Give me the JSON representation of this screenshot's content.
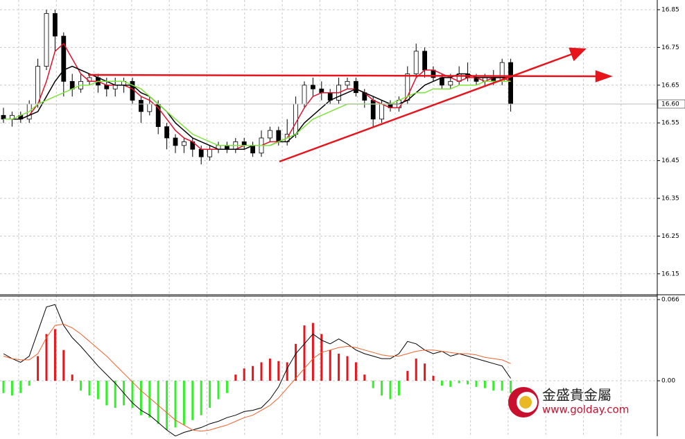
{
  "chart_data": [
    {
      "type": "candlestick",
      "ylim": [
        16.0945,
        16.8757
      ],
      "yticks": [
        16.85,
        16.75,
        16.65,
        16.55,
        16.45,
        16.35,
        16.25,
        16.15
      ],
      "current_price": {
        "value": 16.6,
        "label": "16.60"
      },
      "grid": true,
      "up_color": "#ffffff",
      "down_color": "#000000",
      "open": [
        16.57,
        16.56,
        16.57,
        16.56,
        16.6,
        16.7,
        16.84,
        16.78,
        16.66,
        16.64,
        16.66,
        16.67,
        16.65,
        16.64,
        16.65,
        16.66,
        16.61,
        16.58,
        16.6,
        16.54,
        16.51,
        16.49,
        16.5,
        16.48,
        16.46,
        16.48,
        16.49,
        16.48,
        16.5,
        16.49,
        16.47,
        16.51,
        16.53,
        16.5,
        16.52,
        16.6,
        16.65,
        16.64,
        16.63,
        16.61,
        16.65,
        16.66,
        16.63,
        16.61,
        16.56,
        16.6,
        16.59,
        16.61,
        16.68,
        16.74,
        16.69,
        16.67,
        16.65,
        16.66,
        16.68,
        16.67,
        16.66,
        16.67,
        16.66,
        16.71
      ],
      "high": [
        16.59,
        16.58,
        16.58,
        16.61,
        16.72,
        16.85,
        16.85,
        16.79,
        16.68,
        16.68,
        16.68,
        16.68,
        16.67,
        16.67,
        16.67,
        16.67,
        16.62,
        16.62,
        16.61,
        16.55,
        16.52,
        16.51,
        16.51,
        16.49,
        16.49,
        16.5,
        16.5,
        16.51,
        16.51,
        16.5,
        16.53,
        16.54,
        16.54,
        16.56,
        16.62,
        16.66,
        16.67,
        16.66,
        16.64,
        16.67,
        16.67,
        16.67,
        16.64,
        16.62,
        16.61,
        16.61,
        16.62,
        16.7,
        16.76,
        16.75,
        16.7,
        16.68,
        16.68,
        16.7,
        16.71,
        16.68,
        16.68,
        16.69,
        16.72,
        16.72
      ],
      "low": [
        16.55,
        16.54,
        16.55,
        16.55,
        16.59,
        16.69,
        16.74,
        16.62,
        16.62,
        16.63,
        16.65,
        16.63,
        16.62,
        16.62,
        16.63,
        16.6,
        16.55,
        16.57,
        16.52,
        16.48,
        16.47,
        16.47,
        16.46,
        16.44,
        16.45,
        16.47,
        16.47,
        16.47,
        16.48,
        16.46,
        16.46,
        16.5,
        16.49,
        16.49,
        16.51,
        16.59,
        16.62,
        16.61,
        16.6,
        16.6,
        16.64,
        16.62,
        16.59,
        16.54,
        16.55,
        16.58,
        16.58,
        16.6,
        16.67,
        16.67,
        16.66,
        16.64,
        16.64,
        16.65,
        16.66,
        16.65,
        16.65,
        16.65,
        16.65,
        16.58
      ],
      "close": [
        16.56,
        16.57,
        16.56,
        16.6,
        16.7,
        16.84,
        16.78,
        16.66,
        16.64,
        16.66,
        16.67,
        16.65,
        16.64,
        16.65,
        16.66,
        16.61,
        16.58,
        16.6,
        16.54,
        16.51,
        16.49,
        16.5,
        16.48,
        16.46,
        16.48,
        16.49,
        16.48,
        16.5,
        16.49,
        16.47,
        16.51,
        16.53,
        16.5,
        16.52,
        16.6,
        16.65,
        16.64,
        16.63,
        16.61,
        16.65,
        16.66,
        16.63,
        16.61,
        16.56,
        16.6,
        16.59,
        16.61,
        16.68,
        16.74,
        16.69,
        16.67,
        16.65,
        16.66,
        16.68,
        16.67,
        16.66,
        16.67,
        16.66,
        16.71,
        16.6
      ],
      "series": [
        {
          "color": "#e0102a",
          "values": [
            16.56,
            16.56,
            16.56,
            16.57,
            16.6,
            16.66,
            16.74,
            16.76,
            16.72,
            16.68,
            16.66,
            16.66,
            16.65,
            16.65,
            16.65,
            16.64,
            16.62,
            16.61,
            16.59,
            16.56,
            16.53,
            16.51,
            16.5,
            16.48,
            16.48,
            16.48,
            16.48,
            16.48,
            16.49,
            16.49,
            16.49,
            16.5,
            16.5,
            16.51,
            16.55,
            16.59,
            16.62,
            16.63,
            16.63,
            16.63,
            16.64,
            16.64,
            16.63,
            16.61,
            16.6,
            16.59,
            16.59,
            16.62,
            16.67,
            16.69,
            16.69,
            16.68,
            16.67,
            16.66,
            16.67,
            16.67,
            16.66,
            16.67,
            16.67,
            16.66
          ]
        },
        {
          "color": "#000000",
          "values": [
            16.56,
            16.56,
            16.56,
            16.57,
            16.58,
            16.62,
            16.66,
            16.69,
            16.7,
            16.69,
            16.68,
            16.67,
            16.66,
            16.65,
            16.65,
            16.65,
            16.63,
            16.62,
            16.6,
            16.58,
            16.55,
            16.53,
            16.51,
            16.5,
            16.49,
            16.48,
            16.48,
            16.48,
            16.48,
            16.49,
            16.49,
            16.49,
            16.5,
            16.5,
            16.52,
            16.55,
            16.57,
            16.59,
            16.61,
            16.62,
            16.63,
            16.64,
            16.63,
            16.62,
            16.61,
            16.6,
            16.6,
            16.61,
            16.63,
            16.65,
            16.66,
            16.67,
            16.67,
            16.68,
            16.68,
            16.67,
            16.67,
            16.67,
            16.67,
            16.67
          ]
        },
        {
          "color": "#7ee33a",
          "values": [
            16.56,
            16.56,
            16.57,
            16.58,
            16.6,
            16.61,
            16.62,
            16.63,
            16.64,
            16.65,
            16.65,
            16.66,
            16.66,
            16.66,
            16.66,
            16.65,
            16.64,
            16.62,
            16.6,
            16.58,
            16.56,
            16.54,
            16.52,
            16.51,
            16.5,
            16.49,
            16.49,
            16.49,
            16.49,
            16.49,
            16.49,
            16.49,
            16.5,
            16.51,
            16.52,
            16.54,
            16.56,
            16.57,
            16.58,
            16.59,
            16.6,
            16.6,
            16.6,
            16.6,
            16.6,
            16.6,
            16.61,
            16.62,
            16.63,
            16.63,
            16.64,
            16.64,
            16.64,
            16.65,
            16.65,
            16.65,
            16.66,
            16.66,
            16.66,
            16.66
          ]
        }
      ]
    },
    {
      "type": "macd",
      "ylim": [
        -0.0451,
        0.0688
      ],
      "yticks": [
        0.066,
        {
          "value": 0,
          "label": "0.00"
        }
      ],
      "grid": true,
      "positive_color": "#e8141c",
      "negative_color": "#33f02a",
      "histogram": [
        -0.01,
        -0.012,
        -0.01,
        -0.004,
        0.02,
        0.038,
        0.042,
        0.025,
        0.005,
        -0.008,
        -0.012,
        -0.015,
        -0.02,
        -0.022,
        -0.02,
        -0.022,
        -0.028,
        -0.03,
        -0.035,
        -0.04,
        -0.038,
        -0.036,
        -0.032,
        -0.028,
        -0.022,
        -0.015,
        -0.01,
        0.005,
        0.01,
        0.012,
        0.015,
        0.018,
        0.016,
        0.015,
        0.03,
        0.045,
        0.047,
        0.038,
        0.025,
        0.022,
        0.02,
        0.015,
        0.005,
        -0.006,
        -0.012,
        -0.015,
        -0.012,
        0.008,
        0.018,
        0.014,
        0.004,
        -0.004,
        -0.005,
        -0.002,
        -0.003,
        -0.005,
        -0.006,
        -0.008,
        -0.008,
        -0.01
      ],
      "series": [
        {
          "color": "#000000",
          "values": [
            0.022,
            0.018,
            0.015,
            0.02,
            0.04,
            0.06,
            0.062,
            0.045,
            0.035,
            0.028,
            0.02,
            0.012,
            0.005,
            -0.002,
            -0.01,
            -0.018,
            -0.024,
            -0.028,
            -0.034,
            -0.04,
            -0.045,
            -0.042,
            -0.04,
            -0.038,
            -0.035,
            -0.033,
            -0.03,
            -0.028,
            -0.025,
            -0.024,
            -0.022,
            -0.015,
            -0.005,
            0.01,
            0.022,
            0.03,
            0.038,
            0.033,
            0.03,
            0.034,
            0.03,
            0.025,
            0.022,
            0.02,
            0.018,
            0.018,
            0.022,
            0.032,
            0.03,
            0.025,
            0.022,
            0.024,
            0.02,
            0.022,
            0.02,
            0.018,
            0.016,
            0.014,
            0.012,
            0.002
          ]
        },
        {
          "color": "#f0602a",
          "values": [
            0.02,
            0.018,
            0.017,
            0.017,
            0.022,
            0.035,
            0.045,
            0.046,
            0.043,
            0.038,
            0.032,
            0.026,
            0.02,
            0.013,
            0.006,
            -0.001,
            -0.008,
            -0.014,
            -0.02,
            -0.026,
            -0.032,
            -0.036,
            -0.04,
            -0.041,
            -0.04,
            -0.038,
            -0.036,
            -0.033,
            -0.03,
            -0.028,
            -0.024,
            -0.02,
            -0.014,
            -0.006,
            0.002,
            0.01,
            0.018,
            0.023,
            0.025,
            0.027,
            0.028,
            0.027,
            0.025,
            0.023,
            0.021,
            0.02,
            0.02,
            0.022,
            0.024,
            0.025,
            0.025,
            0.024,
            0.023,
            0.022,
            0.022,
            0.021,
            0.019,
            0.018,
            0.017,
            0.014
          ]
        }
      ]
    }
  ],
  "branding": {
    "name": "金盛貴金屬",
    "url": "www.golday.com"
  }
}
